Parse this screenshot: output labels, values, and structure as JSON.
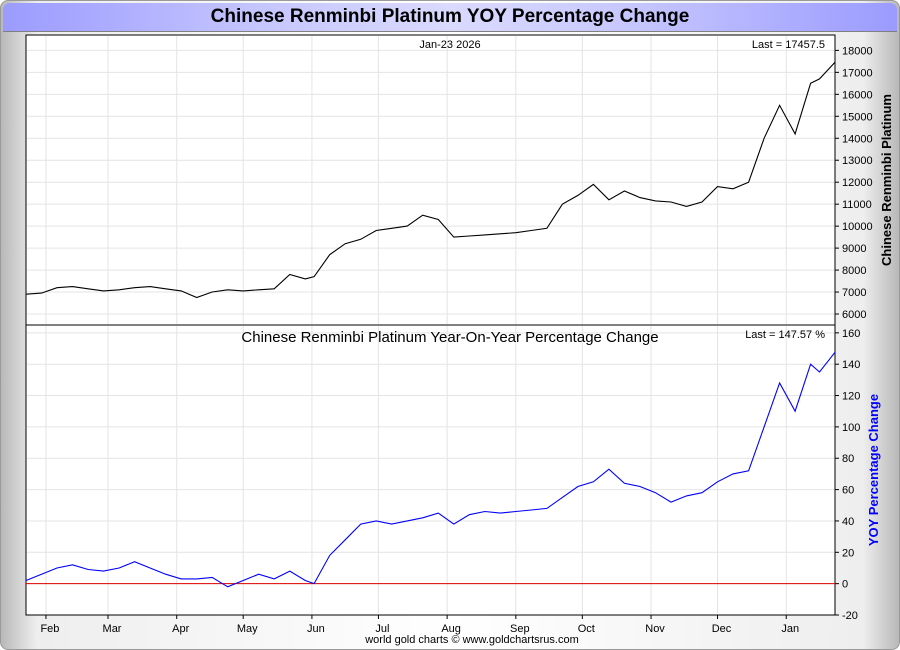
{
  "title": "Chinese Renminbi Platinum YOY Percentage Change",
  "footer": "world gold charts © www.goldchartsrus.com",
  "colors": {
    "price_line": "#000000",
    "yoy_line": "#0000ff",
    "zero_line": "#e00000",
    "grid": "#e4e4e4"
  },
  "chart_data": [
    {
      "type": "line",
      "date_label": "Jan-23  2026",
      "last_label": "Last = 17457.5",
      "ylabel": "Chinese Renminbi Platinum",
      "ylim": [
        5500,
        18700
      ],
      "yticks": [
        6000,
        7000,
        8000,
        9000,
        10000,
        11000,
        12000,
        13000,
        14000,
        15000,
        16000,
        17000,
        18000
      ],
      "xticks": [
        "Feb",
        "Mar",
        "Apr",
        "May",
        "Jun",
        "Jul",
        "Aug",
        "Sep",
        "Oct",
        "Nov",
        "Dec",
        "Jan"
      ],
      "x": [
        "2025-01-23",
        "2025-01-30",
        "2025-02-06",
        "2025-02-13",
        "2025-02-20",
        "2025-02-27",
        "2025-03-06",
        "2025-03-13",
        "2025-03-20",
        "2025-03-27",
        "2025-04-03",
        "2025-04-10",
        "2025-04-17",
        "2025-04-24",
        "2025-05-01",
        "2025-05-08",
        "2025-05-15",
        "2025-05-22",
        "2025-05-29",
        "2025-06-02",
        "2025-06-09",
        "2025-06-16",
        "2025-06-23",
        "2025-06-30",
        "2025-07-07",
        "2025-07-14",
        "2025-07-21",
        "2025-07-28",
        "2025-08-04",
        "2025-08-11",
        "2025-08-18",
        "2025-08-25",
        "2025-09-01",
        "2025-09-08",
        "2025-09-15",
        "2025-09-22",
        "2025-09-29",
        "2025-10-06",
        "2025-10-13",
        "2025-10-20",
        "2025-10-27",
        "2025-11-03",
        "2025-11-10",
        "2025-11-17",
        "2025-11-24",
        "2025-12-01",
        "2025-12-08",
        "2025-12-15",
        "2025-12-22",
        "2025-12-29",
        "2026-01-05",
        "2026-01-12",
        "2026-01-16",
        "2026-01-23"
      ],
      "values": [
        6900,
        6950,
        7200,
        7250,
        7150,
        7050,
        7100,
        7200,
        7250,
        7150,
        7050,
        6750,
        7000,
        7100,
        7050,
        7100,
        7150,
        7800,
        7600,
        7700,
        8700,
        9200,
        9400,
        9800,
        9900,
        10000,
        10500,
        10300,
        9500,
        9550,
        9600,
        9650,
        9700,
        9800,
        9900,
        11000,
        11400,
        11900,
        11200,
        11600,
        11300,
        11150,
        11100,
        10900,
        11100,
        11800,
        11700,
        12000,
        14000,
        15500,
        14200,
        16500,
        16700,
        17457.5
      ]
    },
    {
      "type": "line",
      "title": "Chinese Renminbi Platinum Year-On-Year Percentage Change",
      "last_label": "Last = 147.57 %",
      "ylabel": "YOY Percentage Change",
      "ylim": [
        -20,
        165
      ],
      "yticks": [
        -20,
        0,
        20,
        40,
        60,
        80,
        100,
        120,
        140,
        160
      ],
      "xticks": [
        "Feb",
        "Mar",
        "Apr",
        "May",
        "Jun",
        "Jul",
        "Aug",
        "Sep",
        "Oct",
        "Nov",
        "Dec",
        "Jan"
      ],
      "reference_line": 0,
      "x": [
        "2025-01-23",
        "2025-01-30",
        "2025-02-06",
        "2025-02-13",
        "2025-02-20",
        "2025-02-27",
        "2025-03-06",
        "2025-03-13",
        "2025-03-20",
        "2025-03-27",
        "2025-04-03",
        "2025-04-10",
        "2025-04-17",
        "2025-04-24",
        "2025-05-01",
        "2025-05-08",
        "2025-05-15",
        "2025-05-22",
        "2025-05-29",
        "2025-06-02",
        "2025-06-09",
        "2025-06-16",
        "2025-06-23",
        "2025-06-30",
        "2025-07-07",
        "2025-07-14",
        "2025-07-21",
        "2025-07-28",
        "2025-08-04",
        "2025-08-11",
        "2025-08-18",
        "2025-08-25",
        "2025-09-01",
        "2025-09-08",
        "2025-09-15",
        "2025-09-22",
        "2025-09-29",
        "2025-10-06",
        "2025-10-13",
        "2025-10-20",
        "2025-10-27",
        "2025-11-03",
        "2025-11-10",
        "2025-11-17",
        "2025-11-24",
        "2025-12-01",
        "2025-12-08",
        "2025-12-15",
        "2025-12-22",
        "2025-12-29",
        "2026-01-05",
        "2026-01-12",
        "2026-01-16",
        "2026-01-23"
      ],
      "values": [
        2,
        6,
        10,
        12,
        9,
        8,
        10,
        14,
        10,
        6,
        3,
        3,
        4,
        -2,
        2,
        6,
        3,
        8,
        2,
        0,
        18,
        28,
        38,
        40,
        38,
        40,
        42,
        45,
        38,
        44,
        46,
        45,
        46,
        47,
        48,
        55,
        62,
        65,
        73,
        64,
        62,
        58,
        52,
        56,
        58,
        65,
        70,
        72,
        100,
        128,
        110,
        140,
        135,
        147.57
      ]
    }
  ]
}
